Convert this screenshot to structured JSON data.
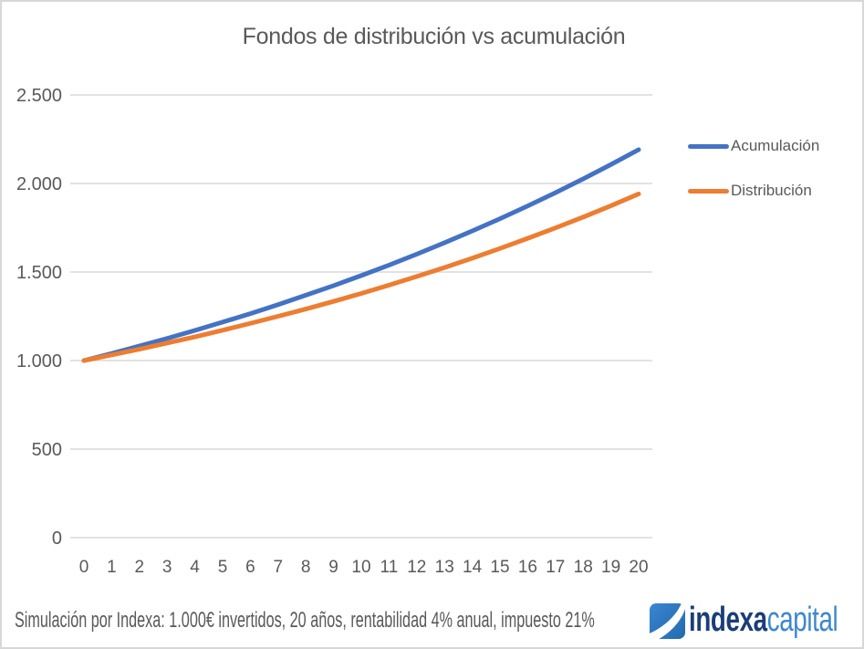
{
  "title": "Fondos de distribución vs acumulación",
  "chart_data": {
    "type": "line",
    "title": "Fondos de distribución vs acumulación",
    "x": [
      0,
      1,
      2,
      3,
      4,
      5,
      6,
      7,
      8,
      9,
      10,
      11,
      12,
      13,
      14,
      15,
      16,
      17,
      18,
      19,
      20
    ],
    "xlabel": "",
    "ylabel": "",
    "ylim": [
      0,
      2500
    ],
    "ytick_step": 500,
    "ytick_labels": [
      "0",
      "500",
      "1.000",
      "1.500",
      "2.000",
      "2.500"
    ],
    "grid": true,
    "legend_position": "right",
    "series": [
      {
        "name": "Acumulación",
        "color": "#4472C4",
        "values": [
          1000,
          1040,
          1082,
          1125,
          1170,
          1217,
          1265,
          1316,
          1369,
          1423,
          1480,
          1539,
          1601,
          1665,
          1732,
          1801,
          1873,
          1948,
          2026,
          2107,
          2191
        ]
      },
      {
        "name": "Distribución",
        "color": "#ED7D31",
        "values": [
          1000,
          1032,
          1064,
          1099,
          1134,
          1171,
          1210,
          1250,
          1291,
          1334,
          1379,
          1426,
          1475,
          1525,
          1578,
          1633,
          1690,
          1749,
          1810,
          1874,
          1941
        ]
      }
    ]
  },
  "footer": {
    "note": "Simulación por Indexa: 1.000€ invertidos, 20 años, rentabilidad 4% anual, impuesto 21%"
  },
  "logo": {
    "brand_bold": "indexa",
    "brand_light": "capital",
    "icon_color_top": "#3B87D3",
    "icon_color_bottom": "#2368AC",
    "bold_color": "#1B3E78",
    "light_color": "#3E87CE"
  },
  "colors": {
    "title_text": "#595959",
    "axis_text": "#595959",
    "gridline": "#D9D9D9",
    "border": "#D7D7D7",
    "background": "#FFFFFF"
  }
}
